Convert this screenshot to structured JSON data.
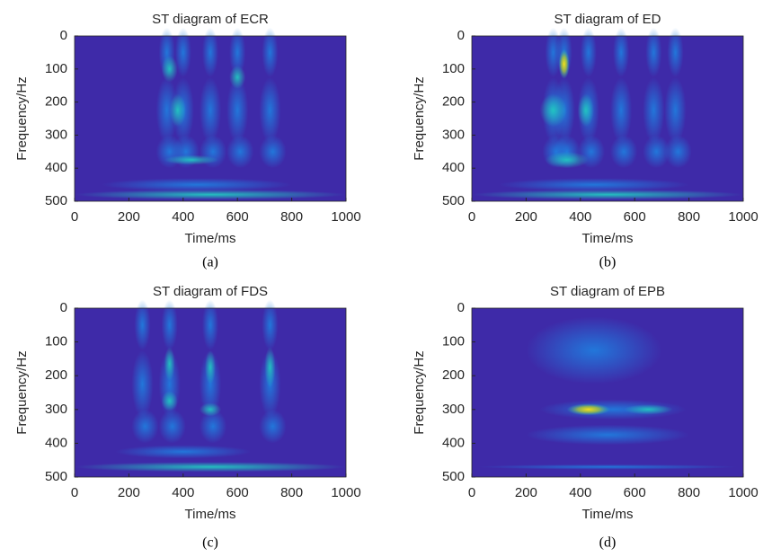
{
  "chart_data": [
    {
      "type": "heatmap",
      "title": "ST diagram of ECR",
      "xlabel": "Time/ms",
      "ylabel": "Frequency/Hz",
      "caption": "(a)",
      "xlim": [
        0,
        1000
      ],
      "xticks": [
        0,
        200,
        400,
        600,
        800,
        1000
      ],
      "ylim": [
        500,
        0
      ],
      "yticks": [
        0,
        100,
        200,
        300,
        400,
        500
      ]
    },
    {
      "type": "heatmap",
      "title": "ST diagram of ED",
      "xlabel": "Time/ms",
      "ylabel": "Frequency/Hz",
      "caption": "(b)",
      "xlim": [
        0,
        1000
      ],
      "xticks": [
        0,
        200,
        400,
        600,
        800,
        1000
      ],
      "ylim": [
        500,
        0
      ],
      "yticks": [
        0,
        100,
        200,
        300,
        400,
        500
      ]
    },
    {
      "type": "heatmap",
      "title": "ST diagram of FDS",
      "xlabel": "Time/ms",
      "ylabel": "Frequency/Hz",
      "caption": "(c)",
      "xlim": [
        0,
        1000
      ],
      "xticks": [
        0,
        200,
        400,
        600,
        800,
        1000
      ],
      "ylim": [
        500,
        0
      ],
      "yticks": [
        0,
        100,
        200,
        300,
        400,
        500
      ]
    },
    {
      "type": "heatmap",
      "title": "ST diagram of EPB",
      "xlabel": "Time/ms",
      "ylabel": "Frequency/Hz",
      "caption": "(d)",
      "xlim": [
        0,
        1000
      ],
      "xticks": [
        0,
        200,
        400,
        600,
        800,
        1000
      ],
      "ylim": [
        500,
        0
      ],
      "yticks": [
        0,
        100,
        200,
        300,
        400,
        500
      ]
    }
  ]
}
